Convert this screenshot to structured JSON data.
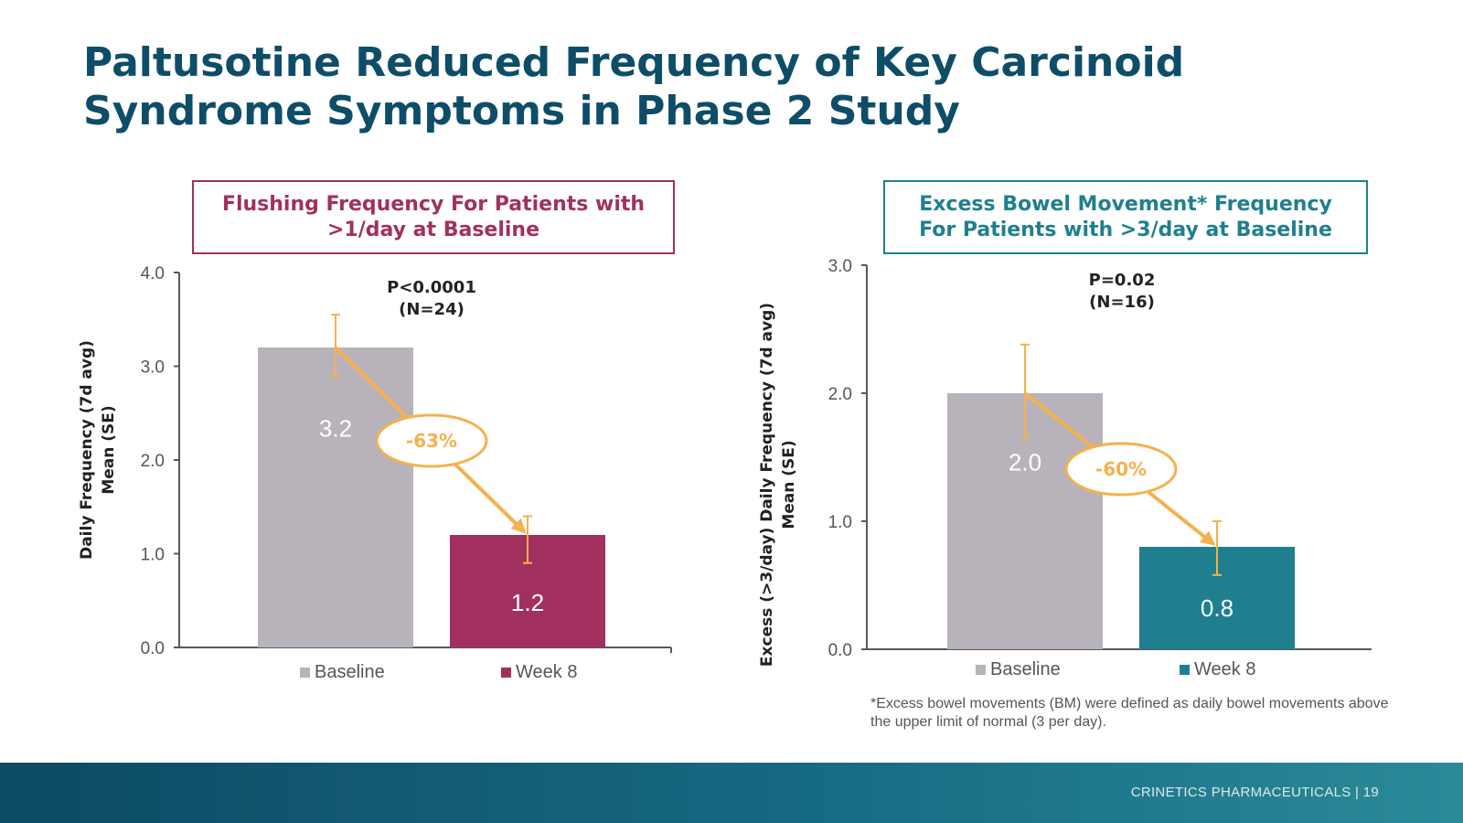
{
  "slide": {
    "title_line1": "Paltusotine Reduced Frequency of Key Carcinoid",
    "title_line2": "Syndrome Symptoms in Phase 2 Study",
    "footnote": "*Excess bowel movements (BM) were defined as daily bowel movements above the upper limit of normal (3 per day).",
    "footer_company": "CRINETICS PHARMACEUTICALS",
    "footer_page": "| 19"
  },
  "colors": {
    "title": "#0e4d67",
    "baseline_bar": "#b8b3bb",
    "flushing_accent": "#a2305f",
    "bowel_accent": "#1f7f8e",
    "annotation": "#f5b14d",
    "axis": "#595959"
  },
  "chart_data": [
    {
      "type": "bar",
      "title_line1": "Flushing Frequency For Patients with",
      "title_line2": ">1/day at Baseline",
      "ylabel_line1": "Daily Frequency (7d avg)",
      "ylabel_line2": "Mean (SE)",
      "ylim": [
        0,
        4
      ],
      "yticks": [
        "0.0",
        "1.0",
        "2.0",
        "3.0",
        "4.0"
      ],
      "categories": [
        "Baseline",
        "Week 8"
      ],
      "values": [
        3.2,
        1.2
      ],
      "data_labels": [
        "3.2",
        "1.2"
      ],
      "error_low": [
        2.9,
        0.9
      ],
      "error_high": [
        3.55,
        1.4
      ],
      "pvalue": "P<0.0001",
      "n": "(N=24)",
      "reduction": "-63%",
      "legend": [
        "Baseline",
        "Week 8"
      ],
      "legend_position": "bottom",
      "grid": false,
      "colors": [
        "#b8b3bb",
        "#a2305f"
      ]
    },
    {
      "type": "bar",
      "title_line1": "Excess Bowel Movement* Frequency",
      "title_line2": "For Patients with >3/day at Baseline",
      "ylabel_line1": "Excess (>3/day) Daily Frequency (7d avg)",
      "ylabel_line2": "Mean (SE)",
      "ylim": [
        0,
        3
      ],
      "yticks": [
        "0.0",
        "1.0",
        "2.0",
        "3.0"
      ],
      "categories": [
        "Baseline",
        "Week 8"
      ],
      "values": [
        2.0,
        0.8
      ],
      "data_labels": [
        "2.0",
        "0.8"
      ],
      "error_low": [
        1.65,
        0.58
      ],
      "error_high": [
        2.38,
        1.0
      ],
      "pvalue": "P=0.02",
      "n": "(N=16)",
      "reduction": "-60%",
      "legend": [
        "Baseline",
        "Week 8"
      ],
      "legend_position": "bottom",
      "grid": false,
      "colors": [
        "#b8b3bb",
        "#1f7f8e"
      ]
    }
  ]
}
